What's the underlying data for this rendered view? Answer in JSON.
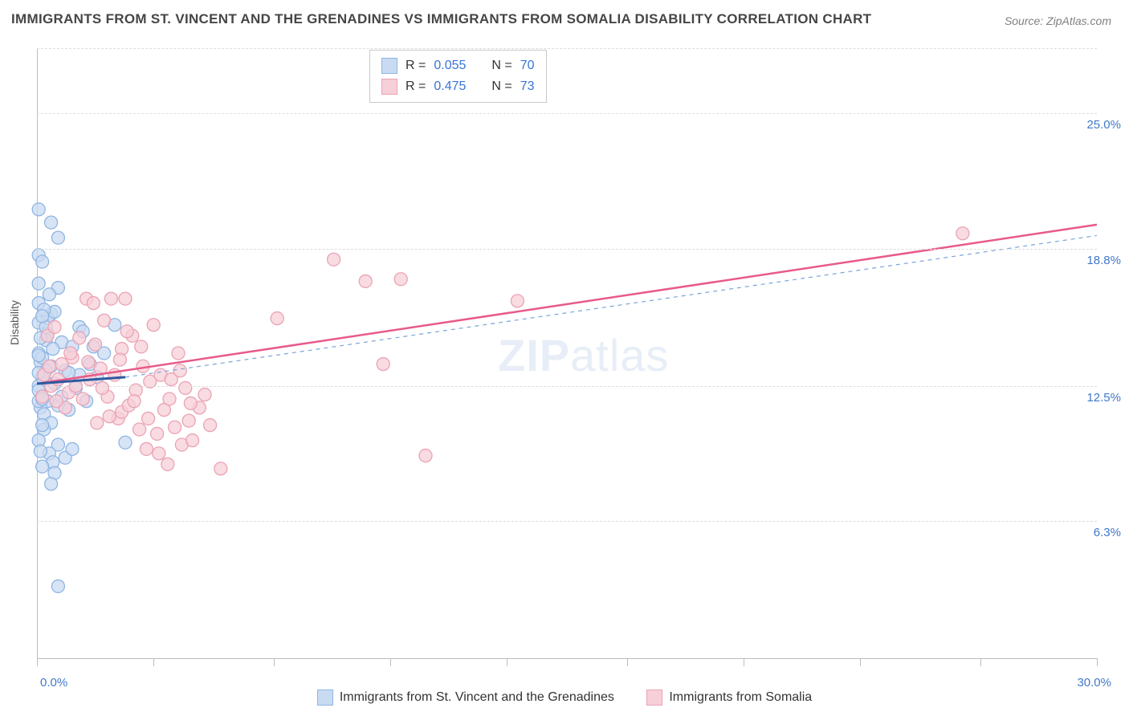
{
  "title": "IMMIGRANTS FROM ST. VINCENT AND THE GRENADINES VS IMMIGRANTS FROM SOMALIA DISABILITY CORRELATION CHART",
  "source": "Source: ZipAtlas.com",
  "watermark_a": "ZIP",
  "watermark_b": "atlas",
  "y_axis_label": "Disability",
  "x_range": [
    0.0,
    30.0
  ],
  "y_range": [
    0.0,
    28.0
  ],
  "y_ticks": [
    {
      "value": 6.3,
      "label": "6.3%"
    },
    {
      "value": 12.5,
      "label": "12.5%"
    },
    {
      "value": 18.8,
      "label": "18.8%"
    },
    {
      "value": 25.0,
      "label": "25.0%"
    }
  ],
  "x_ticks": [
    0.0,
    3.3,
    6.7,
    10.0,
    13.3,
    16.7,
    20.0,
    23.3,
    26.7,
    30.0
  ],
  "x_tick_labels": {
    "left": "0.0%",
    "right": "30.0%"
  },
  "grid_color": "#dcdcdc",
  "axis_color": "#bdbdbd",
  "legend_top": [
    {
      "color_fill": "#c9dbf2",
      "color_stroke": "#8fb5e3",
      "r_label": "R =",
      "r_value": "0.055",
      "n_label": "N =",
      "n_value": "70"
    },
    {
      "color_fill": "#f7cfd8",
      "color_stroke": "#eaa3b3",
      "r_label": "R =",
      "r_value": "0.475",
      "n_label": "N =",
      "n_value": "73"
    }
  ],
  "legend_bottom": [
    {
      "color_fill": "#c9dbf2",
      "color_stroke": "#8fb5e3",
      "label": "Immigrants from St. Vincent and the Grenadines"
    },
    {
      "color_fill": "#f7cfd8",
      "color_stroke": "#eaa3b3",
      "label": "Immigrants from Somalia"
    }
  ],
  "series_blue": {
    "fill": "#c9dbf2",
    "stroke": "#8fb5e3",
    "opacity": 0.75,
    "points": [
      [
        0.05,
        20.6
      ],
      [
        0.4,
        20.0
      ],
      [
        0.6,
        19.3
      ],
      [
        0.05,
        18.5
      ],
      [
        0.15,
        18.2
      ],
      [
        0.6,
        17.0
      ],
      [
        0.4,
        15.8
      ],
      [
        0.3,
        15.6
      ],
      [
        1.2,
        15.2
      ],
      [
        0.7,
        14.5
      ],
      [
        1.0,
        14.3
      ],
      [
        1.6,
        14.3
      ],
      [
        2.2,
        15.3
      ],
      [
        1.3,
        15.0
      ],
      [
        1.9,
        14.0
      ],
      [
        0.1,
        13.6
      ],
      [
        0.4,
        13.4
      ],
      [
        0.8,
        13.2
      ],
      [
        1.2,
        13.0
      ],
      [
        0.2,
        12.8
      ],
      [
        0.05,
        12.5
      ],
      [
        0.05,
        12.3
      ],
      [
        0.5,
        12.6
      ],
      [
        0.9,
        13.1
      ],
      [
        1.5,
        13.5
      ],
      [
        0.15,
        12.0
      ],
      [
        0.3,
        11.8
      ],
      [
        0.6,
        11.6
      ],
      [
        0.1,
        11.5
      ],
      [
        0.2,
        11.2
      ],
      [
        0.4,
        10.8
      ],
      [
        0.2,
        10.5
      ],
      [
        0.6,
        9.8
      ],
      [
        0.8,
        9.2
      ],
      [
        1.0,
        9.6
      ],
      [
        0.35,
        9.4
      ],
      [
        0.15,
        10.7
      ],
      [
        0.45,
        9.0
      ],
      [
        0.5,
        8.5
      ],
      [
        2.5,
        9.9
      ],
      [
        0.6,
        3.3
      ],
      [
        0.05,
        15.4
      ],
      [
        0.3,
        14.9
      ],
      [
        0.05,
        14.0
      ],
      [
        0.15,
        13.8
      ],
      [
        0.25,
        13.2
      ],
      [
        0.05,
        13.9
      ],
      [
        0.05,
        16.3
      ],
      [
        0.35,
        16.7
      ],
      [
        0.5,
        15.9
      ],
      [
        0.7,
        12.0
      ],
      [
        0.9,
        11.4
      ],
      [
        1.1,
        12.4
      ],
      [
        1.4,
        11.8
      ],
      [
        1.7,
        12.9
      ],
      [
        0.15,
        12.9
      ],
      [
        0.25,
        14.6
      ],
      [
        0.45,
        14.2
      ],
      [
        0.2,
        16.0
      ],
      [
        0.25,
        15.2
      ],
      [
        0.4,
        8.0
      ],
      [
        0.15,
        8.8
      ],
      [
        0.05,
        11.8
      ],
      [
        0.05,
        10.0
      ],
      [
        0.1,
        9.5
      ],
      [
        0.15,
        15.7
      ],
      [
        0.05,
        17.2
      ],
      [
        0.1,
        14.7
      ],
      [
        0.15,
        11.9
      ],
      [
        0.05,
        13.1
      ]
    ],
    "trend": {
      "x1": 0.0,
      "y1": 12.6,
      "x2": 2.5,
      "y2": 12.9,
      "color": "#2d5aa0",
      "width": 3
    },
    "trend_ext": {
      "x1": 2.5,
      "y1": 12.9,
      "x2": 30.0,
      "y2": 19.4,
      "color": "#7ba3db",
      "width": 1.2,
      "dash": "5,5"
    }
  },
  "series_pink": {
    "fill": "#f7cfd8",
    "stroke": "#eaa3b3",
    "opacity": 0.75,
    "points": [
      [
        0.3,
        14.8
      ],
      [
        0.5,
        15.2
      ],
      [
        0.7,
        13.5
      ],
      [
        0.9,
        12.2
      ],
      [
        1.0,
        13.8
      ],
      [
        1.2,
        14.7
      ],
      [
        1.3,
        11.9
      ],
      [
        1.4,
        16.5
      ],
      [
        1.5,
        12.8
      ],
      [
        1.6,
        16.3
      ],
      [
        1.7,
        10.8
      ],
      [
        1.8,
        13.3
      ],
      [
        1.9,
        15.5
      ],
      [
        2.0,
        12.0
      ],
      [
        2.1,
        16.5
      ],
      [
        2.2,
        13.0
      ],
      [
        2.3,
        11.0
      ],
      [
        2.4,
        14.2
      ],
      [
        2.4,
        11.3
      ],
      [
        2.5,
        16.5
      ],
      [
        2.6,
        11.6
      ],
      [
        2.7,
        14.8
      ],
      [
        2.8,
        12.3
      ],
      [
        2.9,
        10.5
      ],
      [
        3.0,
        13.4
      ],
      [
        3.1,
        9.6
      ],
      [
        3.2,
        12.7
      ],
      [
        3.3,
        15.3
      ],
      [
        3.4,
        10.3
      ],
      [
        3.5,
        13.0
      ],
      [
        3.6,
        11.4
      ],
      [
        3.7,
        8.9
      ],
      [
        3.8,
        12.8
      ],
      [
        3.9,
        10.6
      ],
      [
        4.0,
        14.0
      ],
      [
        4.1,
        9.8
      ],
      [
        4.2,
        12.4
      ],
      [
        4.3,
        10.9
      ],
      [
        4.4,
        10.0
      ],
      [
        4.6,
        11.5
      ],
      [
        4.9,
        10.7
      ],
      [
        5.2,
        8.7
      ],
      [
        6.8,
        15.6
      ],
      [
        8.4,
        18.3
      ],
      [
        9.3,
        17.3
      ],
      [
        9.8,
        13.5
      ],
      [
        10.3,
        17.4
      ],
      [
        11.0,
        9.3
      ],
      [
        13.6,
        16.4
      ],
      [
        26.2,
        19.5
      ],
      [
        0.2,
        13.0
      ],
      [
        0.4,
        12.5
      ],
      [
        0.6,
        12.8
      ],
      [
        0.8,
        11.5
      ],
      [
        1.1,
        12.5
      ],
      [
        1.45,
        13.6
      ],
      [
        1.65,
        14.4
      ],
      [
        1.85,
        12.4
      ],
      [
        2.05,
        11.1
      ],
      [
        2.35,
        13.7
      ],
      [
        2.55,
        15.0
      ],
      [
        2.75,
        11.8
      ],
      [
        2.95,
        14.3
      ],
      [
        3.15,
        11.0
      ],
      [
        3.45,
        9.4
      ],
      [
        3.75,
        11.9
      ],
      [
        4.05,
        13.2
      ],
      [
        4.35,
        11.7
      ],
      [
        4.75,
        12.1
      ],
      [
        0.15,
        12.0
      ],
      [
        0.35,
        13.4
      ],
      [
        0.55,
        11.8
      ],
      [
        0.95,
        14.0
      ]
    ],
    "trend": {
      "x1": 0.0,
      "y1": 12.6,
      "x2": 30.0,
      "y2": 19.9,
      "color": "#e85a8a",
      "width": 2.5
    }
  },
  "marker_radius": 8,
  "value_text_color": "#3874d6"
}
